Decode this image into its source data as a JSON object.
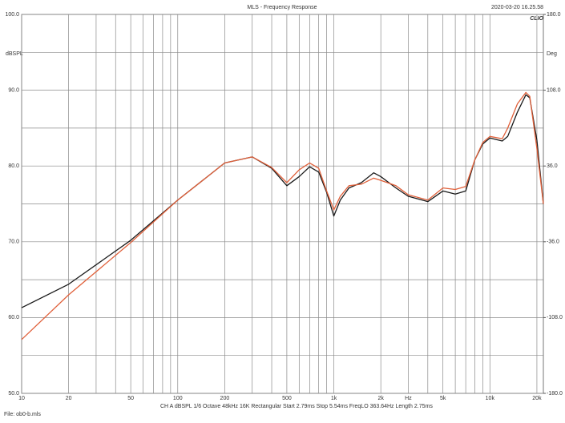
{
  "chart_data": {
    "type": "line",
    "title": "MLS - Frequency Response",
    "timestamp": "2020-03-20 16.25.58",
    "logo": "CLIO",
    "y_label": "dBSPL",
    "y2_label": "Deg",
    "settings": "CH A   dBSPL   1/6 Octave   48kHz   16K   Rectangular   Start 2.79ms   Stop 5.54ms   FreqLO 363.64Hz   Length 2.75ms",
    "file": "File: ob0-b.mls",
    "xscale": "log",
    "xlim": [
      10,
      22000
    ],
    "xticks": [
      10,
      20,
      50,
      100,
      200,
      500,
      {
        "value": 1000,
        "label": "1k"
      },
      {
        "value": 2000,
        "label": "2k"
      },
      {
        "value": 3000,
        "label": "Hz"
      },
      {
        "value": 5000,
        "label": "5k"
      },
      {
        "value": 10000,
        "label": "10k"
      },
      {
        "value": 20000,
        "label": "20k"
      }
    ],
    "xgrid_minor": [
      30,
      40,
      60,
      70,
      80,
      90,
      300,
      400,
      600,
      700,
      800,
      900,
      4000,
      6000,
      7000,
      8000,
      9000
    ],
    "ylim": [
      50,
      100
    ],
    "yticks": [
      {
        "value": 50,
        "label": "50.0"
      },
      {
        "value": 60,
        "label": "60.0"
      },
      {
        "value": 70,
        "label": "70.0"
      },
      {
        "value": 80,
        "label": "80.0"
      },
      {
        "value": 90,
        "label": "90.0"
      },
      {
        "value": 100,
        "label": "100.0"
      }
    ],
    "ygrid_minor": [
      55,
      65,
      75,
      85,
      95
    ],
    "y2lim": [
      -180,
      180
    ],
    "y2ticks": [
      {
        "value": -180,
        "label": "-180.0"
      },
      {
        "value": -108,
        "label": "-108.0"
      },
      {
        "value": -36,
        "label": "-36.0"
      },
      {
        "value": 36,
        "label": "36.0"
      },
      {
        "value": 108,
        "label": "108.0"
      },
      {
        "value": 180,
        "label": "180.0"
      }
    ],
    "grid": true,
    "x": [
      10,
      20,
      50,
      100,
      200,
      300,
      400,
      500,
      600,
      700,
      800,
      900,
      1000,
      1100,
      1250,
      1500,
      1800,
      2000,
      2500,
      3000,
      4000,
      5000,
      6000,
      7000,
      8000,
      9000,
      10000,
      12000,
      13000,
      15000,
      17000,
      18000,
      20000,
      22000
    ],
    "series": [
      {
        "color": "#1a1a1a",
        "values": [
          61.3,
          64.4,
          70.2,
          75.5,
          80.4,
          81.2,
          79.7,
          77.4,
          78.6,
          79.9,
          79.2,
          76.5,
          73.4,
          75.5,
          77.1,
          77.8,
          79.1,
          78.6,
          77.1,
          76.0,
          75.3,
          76.7,
          76.3,
          76.7,
          80.8,
          82.9,
          83.7,
          83.3,
          83.9,
          87.1,
          89.4,
          89.0,
          83.4,
          75.0
        ]
      },
      {
        "color": "#e0603a",
        "values": [
          57.1,
          63.0,
          69.9,
          75.5,
          80.4,
          81.2,
          79.8,
          77.8,
          79.5,
          80.4,
          79.7,
          76.7,
          74.2,
          76.0,
          77.4,
          77.6,
          78.4,
          78.1,
          77.4,
          76.2,
          75.5,
          77.1,
          76.9,
          77.3,
          80.8,
          83.1,
          83.9,
          83.6,
          85.0,
          88.2,
          89.7,
          89.2,
          82.3,
          75.0
        ]
      }
    ]
  }
}
